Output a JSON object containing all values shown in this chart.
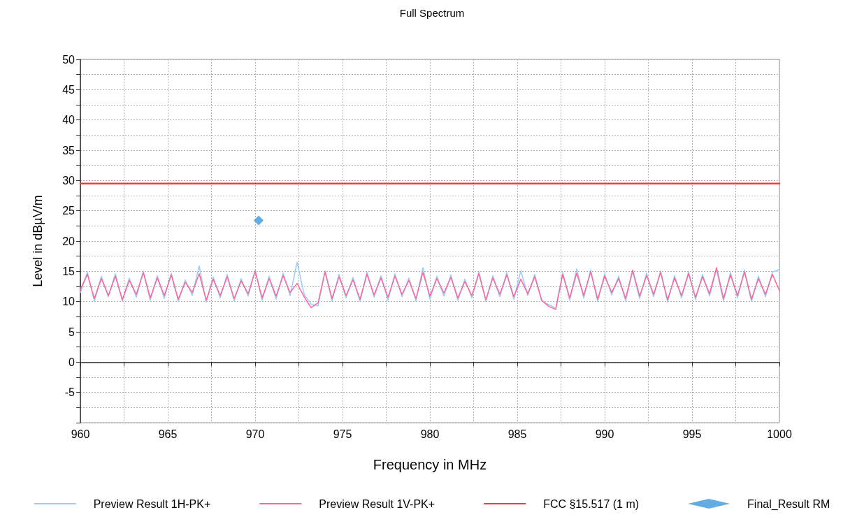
{
  "chart_data": {
    "type": "line",
    "title": "Full Spectrum",
    "xlabel": "Frequency in MHz",
    "ylabel": "Level in dBµV/m",
    "xlim": [
      960,
      1000
    ],
    "xticks": [
      960,
      965,
      970,
      975,
      980,
      985,
      990,
      995,
      1000
    ],
    "ylim": [
      -10,
      50
    ],
    "yticks": [
      {
        "value": -10,
        "label": null
      },
      -5,
      0,
      5,
      10,
      15,
      20,
      25,
      30,
      35,
      40,
      45,
      50
    ],
    "grid": true,
    "legend": "bottom",
    "marker": "none",
    "line_style": "solid",
    "x": [
      960,
      960.4,
      960.8,
      961.2,
      961.6,
      962,
      962.4,
      962.8,
      963.2,
      963.6,
      964,
      964.4,
      964.8,
      965.2,
      965.6,
      966,
      966.4,
      966.8,
      967.2,
      967.6,
      968,
      968.4,
      968.8,
      969.2,
      969.6,
      970,
      970.4,
      970.8,
      971.2,
      971.6,
      972,
      972.4,
      972.8,
      973.2,
      973.6,
      974,
      974.4,
      974.8,
      975.2,
      975.6,
      976,
      976.4,
      976.8,
      977.2,
      977.6,
      978,
      978.4,
      978.8,
      979.2,
      979.6,
      980,
      980.4,
      980.8,
      981.2,
      981.6,
      982,
      982.4,
      982.8,
      983.2,
      983.6,
      984,
      984.4,
      984.8,
      985.2,
      985.6,
      986,
      986.4,
      986.8,
      987.2,
      987.6,
      988,
      988.4,
      988.8,
      989.2,
      989.6,
      990,
      990.4,
      990.8,
      991.2,
      991.6,
      992,
      992.4,
      992.8,
      993.2,
      993.6,
      994,
      994.4,
      994.8,
      995.2,
      995.6,
      996,
      996.4,
      996.8,
      997.2,
      997.6,
      998,
      998.4,
      998.8,
      999.2,
      999.6,
      1000
    ],
    "series": [
      {
        "name": "Preview Result 1H-PK+",
        "color": "#99ccff",
        "values": [
          11.5,
          14.9,
          10,
          14.2,
          10.8,
          14.6,
          10.1,
          13.9,
          10.7,
          15,
          10.2,
          14.3,
          10.5,
          14.7,
          10,
          13.6,
          11,
          15.9,
          9.9,
          14.1,
          10.6,
          14.5,
          10.1,
          13.8,
          10.9,
          15.2,
          10.2,
          14.2,
          10.4,
          14.7,
          11,
          16.5,
          11.2,
          9.6,
          9.3,
          15.1,
          10.1,
          14.5,
          10.6,
          14,
          10,
          14.9,
          10.7,
          14.3,
          10.2,
          14.6,
          10.8,
          13.9,
          10.1,
          15.6,
          10.4,
          14.2,
          10.9,
          14.4,
          10.2,
          13.7,
          10.6,
          15,
          10,
          14.3,
          10.8,
          14.8,
          10.4,
          15.1,
          11,
          14.5,
          10.1,
          9.5,
          8.9,
          14.8,
          10.2,
          15.4,
          10.6,
          15.2,
          10,
          14.6,
          11.1,
          14.2,
          10.1,
          15,
          10.5,
          14.7,
          10.8,
          15.1,
          9.9,
          14.3,
          10.6,
          15,
          10.3,
          14.5,
          10.9,
          15.3,
          10.1,
          14.8,
          10.6,
          15.2,
          10,
          14.2,
          10.8,
          14.9,
          15.3
        ]
      },
      {
        "name": "Preview Result 1V-PK+",
        "color": "#ff6699",
        "values": [
          12,
          14.5,
          10.5,
          13.8,
          11,
          14.2,
          10.3,
          13.5,
          11.2,
          14.8,
          10.6,
          13.9,
          11,
          14.4,
          10.4,
          13.2,
          11.5,
          14.6,
          10.2,
          13.7,
          11,
          14.1,
          10.5,
          13.4,
          11.3,
          15,
          10.6,
          13.8,
          10.9,
          14.3,
          11.5,
          13,
          10.8,
          9,
          9.8,
          14.9,
          10.5,
          14.1,
          11,
          13.6,
          10.4,
          14.5,
          11.1,
          13.9,
          10.7,
          14.2,
          11.2,
          13.5,
          10.5,
          14.8,
          10.9,
          13.8,
          11.4,
          14,
          10.6,
          13.3,
          11,
          14.6,
          10.3,
          13.9,
          11.2,
          14.4,
          10.8,
          13.7,
          11.3,
          14.1,
          10.2,
          9.2,
          8.7,
          14.5,
          10.6,
          14.7,
          11,
          14.9,
          10.4,
          14.2,
          11.5,
          13.8,
          10.5,
          15.2,
          10.9,
          14.3,
          11.2,
          14.8,
          10.3,
          13.9,
          11,
          14.6,
          10.7,
          14.1,
          11.3,
          15.6,
          10.5,
          14.4,
          11,
          14.9,
          10.4,
          13.8,
          11.2,
          14.5,
          11.8
        ]
      },
      {
        "name": "FCC §15.517 (1 m)",
        "color": "#f03c3c",
        "x": [
          960,
          1000
        ],
        "values": [
          29.5,
          29.5
        ]
      },
      {
        "name": "Final_Result RM",
        "type": "scatter",
        "marker": "diamond",
        "color": "#3c96dc",
        "x": [
          970.2
        ],
        "values": [
          23.4
        ]
      }
    ]
  }
}
